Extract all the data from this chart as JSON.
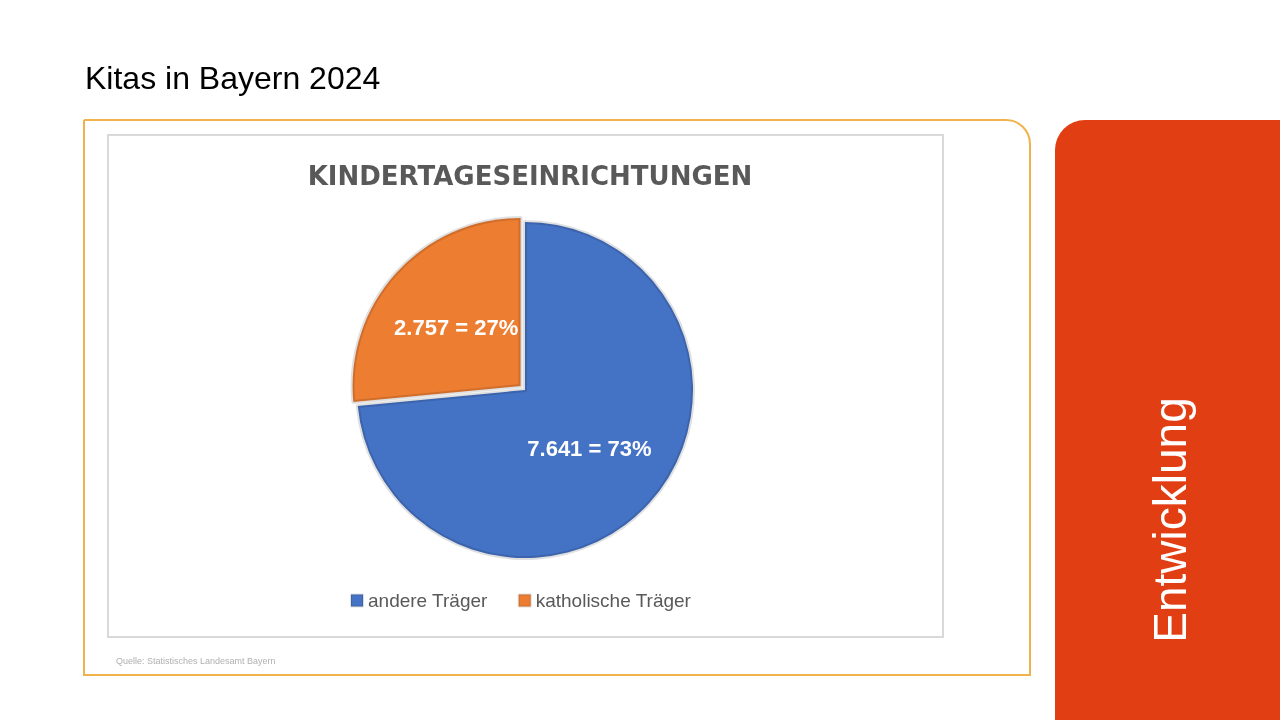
{
  "chart_data": {
    "type": "pie",
    "title": "Kitas in Bayern 2024",
    "subtitle": "KINDERTAGESEINRICHTUNGEN",
    "categories": [
      "andere Träger",
      "katholische Träger"
    ],
    "values": [
      7641,
      2757
    ],
    "value_labels": [
      "7.641 = 73%",
      "2.757 = 27%"
    ],
    "colors": [
      "#4472c4",
      "#ed7d31"
    ],
    "legend": "bottom",
    "annotations": [
      "Entwicklung",
      "Quelle: Statistisches Landesamt Bayern"
    ]
  }
}
